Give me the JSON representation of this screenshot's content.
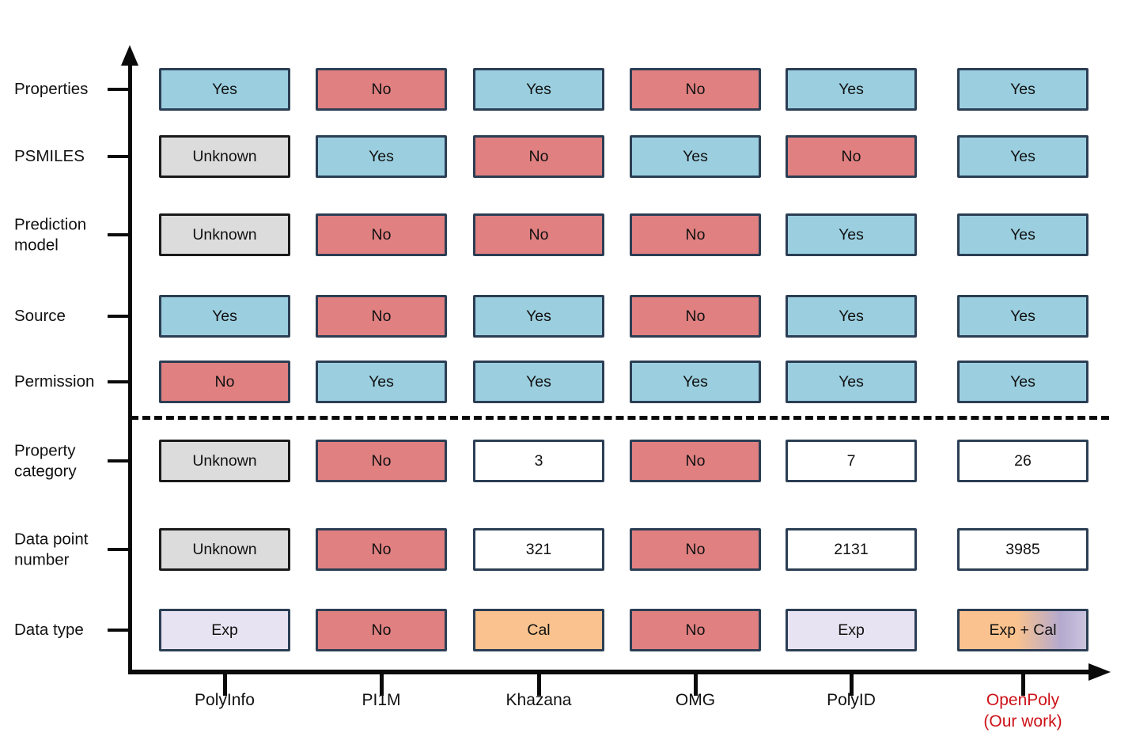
{
  "chart_data": {
    "type": "table",
    "rows": [
      "Properties",
      "PSMILES",
      "Prediction model",
      "Source",
      "Permission",
      "Property category",
      "Data point number",
      "Data type"
    ],
    "columns": [
      {
        "label": "PolyInfo",
        "highlight": false
      },
      {
        "label": "PI1M",
        "highlight": false
      },
      {
        "label": "Khazana",
        "highlight": false
      },
      {
        "label": "OMG",
        "highlight": false
      },
      {
        "label": "PolyID",
        "highlight": false
      },
      {
        "label": "OpenPoly",
        "sublabel": "(Our work)",
        "highlight": true
      }
    ],
    "divider_after_row_index": 4,
    "cells": [
      [
        {
          "value": "Yes",
          "style": "yes"
        },
        {
          "value": "No",
          "style": "no"
        },
        {
          "value": "Yes",
          "style": "yes"
        },
        {
          "value": "No",
          "style": "no"
        },
        {
          "value": "Yes",
          "style": "yes"
        },
        {
          "value": "Yes",
          "style": "yes"
        }
      ],
      [
        {
          "value": "Unknown",
          "style": "unknown"
        },
        {
          "value": "Yes",
          "style": "yes"
        },
        {
          "value": "No",
          "style": "no"
        },
        {
          "value": "Yes",
          "style": "yes"
        },
        {
          "value": "No",
          "style": "no"
        },
        {
          "value": "Yes",
          "style": "yes"
        }
      ],
      [
        {
          "value": "Unknown",
          "style": "unknown"
        },
        {
          "value": "No",
          "style": "no"
        },
        {
          "value": "No",
          "style": "no"
        },
        {
          "value": "No",
          "style": "no"
        },
        {
          "value": "Yes",
          "style": "yes"
        },
        {
          "value": "Yes",
          "style": "yes"
        }
      ],
      [
        {
          "value": "Yes",
          "style": "yes"
        },
        {
          "value": "No",
          "style": "no"
        },
        {
          "value": "Yes",
          "style": "yes"
        },
        {
          "value": "No",
          "style": "no"
        },
        {
          "value": "Yes",
          "style": "yes"
        },
        {
          "value": "Yes",
          "style": "yes"
        }
      ],
      [
        {
          "value": "No",
          "style": "no"
        },
        {
          "value": "Yes",
          "style": "yes"
        },
        {
          "value": "Yes",
          "style": "yes"
        },
        {
          "value": "Yes",
          "style": "yes"
        },
        {
          "value": "Yes",
          "style": "yes"
        },
        {
          "value": "Yes",
          "style": "yes"
        }
      ],
      [
        {
          "value": "Unknown",
          "style": "unknown"
        },
        {
          "value": "No",
          "style": "no"
        },
        {
          "value": "3",
          "style": "number"
        },
        {
          "value": "No",
          "style": "no"
        },
        {
          "value": "7",
          "style": "number"
        },
        {
          "value": "26",
          "style": "number"
        }
      ],
      [
        {
          "value": "Unknown",
          "style": "unknown"
        },
        {
          "value": "No",
          "style": "no"
        },
        {
          "value": "321",
          "style": "number"
        },
        {
          "value": "No",
          "style": "no"
        },
        {
          "value": "2131",
          "style": "number"
        },
        {
          "value": "3985",
          "style": "number"
        }
      ],
      [
        {
          "value": "Exp",
          "style": "exp"
        },
        {
          "value": "No",
          "style": "no"
        },
        {
          "value": "Cal",
          "style": "cal"
        },
        {
          "value": "No",
          "style": "no"
        },
        {
          "value": "Exp",
          "style": "exp"
        },
        {
          "value": "Exp + Cal",
          "style": "exp-cal"
        }
      ]
    ],
    "colors": {
      "yes_fill": "#9bcfe0",
      "no_fill": "#e08081",
      "unknown_fill": "#dcdcdc",
      "number_fill": "#ffffff",
      "exp_fill": "#e8e3f2",
      "cal_fill": "#f9c28e",
      "exp_cal_gradient": [
        "#f9c28e",
        "#b4aacf",
        "#cbc4de"
      ],
      "box_border": "#2b3e54",
      "unknown_border": "#1a1a1a",
      "axis_color": "#0a0a0a",
      "highlight_label_color": "#cd1219",
      "text_color": "#111111"
    }
  }
}
